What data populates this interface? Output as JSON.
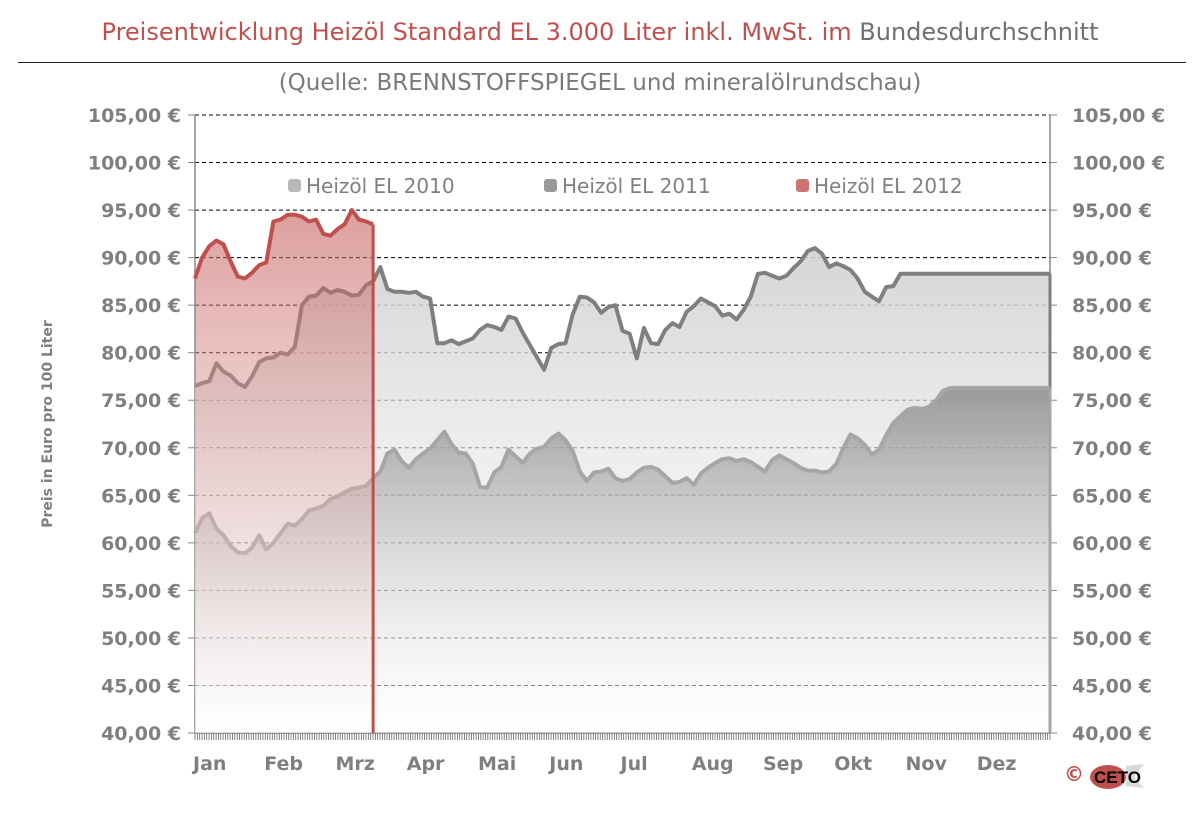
{
  "title": {
    "main": "Preisentwicklung Heizöl Standard EL 3.000 Liter inkl. MwSt. im",
    "rest": " Bundesdurchschnitt"
  },
  "subtitle": "(Quelle: BRENNSTOFFSPIEGEL  und mineralölrundschau)",
  "copyright": "©",
  "logo_text": "CETO",
  "colors": {
    "series_2010": "#a6a6a6",
    "series_2011": "#7f7f7f",
    "series_2012": "#c0504d",
    "grid": "#000000",
    "axis_text": "#7f7f7f"
  },
  "chart_data": {
    "type": "area",
    "ylabel": "Preis in Euro pro 100 Liter",
    "ylim": [
      40,
      105
    ],
    "yticks": [
      40,
      45,
      50,
      55,
      60,
      65,
      70,
      75,
      80,
      85,
      90,
      95,
      100,
      105
    ],
    "ytick_labels": [
      "40,00 €",
      "45,00 €",
      "50,00 €",
      "55,00 €",
      "60,00 €",
      "65,00 €",
      "70,00 €",
      "75,00 €",
      "80,00 €",
      "85,00 €",
      "90,00 €",
      "95,00 €",
      "100,00 €",
      "105,00 €"
    ],
    "x_months": [
      "Jan",
      "Feb",
      "Mrz",
      "Apr",
      "Mai",
      "Jun",
      "Jul",
      "Aug",
      "Sep",
      "Okt",
      "Nov",
      "Dez"
    ],
    "xlim": [
      0,
      12
    ],
    "grid": "horizontal dashed",
    "legend_position": "top",
    "series": [
      {
        "name": "Heizöl EL 2010",
        "x": [
          0.0,
          0.1,
          0.2,
          0.3,
          0.4,
          0.5,
          0.6,
          0.7,
          0.8,
          0.9,
          1.0,
          1.1,
          1.2,
          1.3,
          1.4,
          1.5,
          1.6,
          1.7,
          1.8,
          1.9,
          2.0,
          2.1,
          2.2,
          2.3,
          2.4,
          2.5,
          2.6,
          2.7,
          2.8,
          2.9,
          3.0,
          3.1,
          3.2,
          3.3,
          3.4,
          3.5,
          3.6,
          3.7,
          3.8,
          3.9,
          4.0,
          4.1,
          4.2,
          4.3,
          4.4,
          4.5,
          4.6,
          4.7,
          4.8,
          4.9,
          5.0,
          5.1,
          5.2,
          5.3,
          5.4,
          5.5,
          5.6,
          5.7,
          5.8,
          5.9,
          6.0,
          6.1,
          6.2,
          6.3,
          6.4,
          6.5,
          6.6,
          6.7,
          6.8,
          6.9,
          7.0,
          7.1,
          7.2,
          7.3,
          7.4,
          7.5,
          7.6,
          7.7,
          7.8,
          7.9,
          8.0,
          8.1,
          8.2,
          8.3,
          8.4,
          8.5,
          8.6,
          8.7,
          8.8,
          8.9,
          9.0,
          9.1,
          9.2,
          9.3,
          9.4,
          9.5,
          9.6,
          9.7,
          9.8,
          9.9,
          10.0,
          10.1,
          10.2,
          10.3,
          10.4,
          10.5,
          10.6,
          10.7,
          10.8,
          10.9,
          11.0,
          11.1,
          11.2,
          11.3,
          11.4,
          11.5,
          11.6,
          11.7,
          11.8,
          11.9,
          12.0
        ],
        "values": [
          61.0,
          62.6,
          63.1,
          61.5,
          60.8,
          59.7,
          59.0,
          58.9,
          59.5,
          60.8,
          59.3,
          60.0,
          61.0,
          62.0,
          61.8,
          62.5,
          63.4,
          63.6,
          63.9,
          64.6,
          64.9,
          65.3,
          65.7,
          65.8,
          66.0,
          66.8,
          67.5,
          69.4,
          69.8,
          68.6,
          67.9,
          68.8,
          69.4,
          69.9,
          70.8,
          71.7,
          70.4,
          69.5,
          69.4,
          68.3,
          65.9,
          65.8,
          67.4,
          68.0,
          69.8,
          69.1,
          68.4,
          69.4,
          69.9,
          70.1,
          71.0,
          71.5,
          70.8,
          69.7,
          67.5,
          66.5,
          67.4,
          67.5,
          67.8,
          66.8,
          66.5,
          66.7,
          67.4,
          67.9,
          68.0,
          67.7,
          67.0,
          66.3,
          66.4,
          66.8,
          66.1,
          67.3,
          67.9,
          68.4,
          68.8,
          68.9,
          68.6,
          68.8,
          68.5,
          68.0,
          67.5,
          68.7,
          69.2,
          68.8,
          68.4,
          67.9,
          67.6,
          67.6,
          67.4,
          67.5,
          68.3,
          70.0,
          71.4,
          71.0,
          70.3,
          69.3,
          69.8,
          71.3,
          72.6,
          73.3,
          74.0,
          74.2,
          74.1,
          74.3,
          75.0,
          76.0,
          76.3,
          76.3,
          76.3,
          76.3,
          76.3,
          76.3,
          76.3,
          76.3,
          76.3,
          76.3,
          76.3,
          76.3,
          76.3,
          76.3,
          76.3
        ]
      },
      {
        "name": "Heizöl EL 2011",
        "x": [
          0.0,
          0.1,
          0.2,
          0.3,
          0.4,
          0.5,
          0.6,
          0.7,
          0.8,
          0.9,
          1.0,
          1.1,
          1.2,
          1.3,
          1.4,
          1.5,
          1.6,
          1.7,
          1.8,
          1.9,
          2.0,
          2.1,
          2.2,
          2.3,
          2.4,
          2.5,
          2.6,
          2.7,
          2.8,
          2.9,
          3.0,
          3.1,
          3.2,
          3.3,
          3.4,
          3.5,
          3.6,
          3.7,
          3.8,
          3.9,
          4.0,
          4.1,
          4.2,
          4.3,
          4.4,
          4.5,
          4.6,
          4.7,
          4.8,
          4.9,
          5.0,
          5.1,
          5.2,
          5.3,
          5.4,
          5.5,
          5.6,
          5.7,
          5.8,
          5.9,
          6.0,
          6.1,
          6.2,
          6.3,
          6.4,
          6.5,
          6.6,
          6.7,
          6.8,
          6.9,
          7.0,
          7.1,
          7.2,
          7.3,
          7.4,
          7.5,
          7.6,
          7.7,
          7.8,
          7.9,
          8.0,
          8.1,
          8.2,
          8.3,
          8.4,
          8.5,
          8.6,
          8.7,
          8.8,
          8.9,
          9.0,
          9.1,
          9.2,
          9.3,
          9.4,
          9.5,
          9.6,
          9.7,
          9.8,
          9.9,
          10.0,
          10.1,
          10.2,
          10.3,
          10.4,
          10.5,
          10.6,
          10.7,
          10.8,
          10.9,
          11.0,
          11.1,
          11.2,
          11.3,
          11.4,
          11.5,
          11.6,
          11.7,
          11.8,
          11.9,
          12.0
        ],
        "values": [
          76.5,
          76.8,
          77.0,
          78.9,
          78.0,
          77.6,
          76.8,
          76.4,
          77.5,
          79.0,
          79.4,
          79.5,
          80.0,
          79.8,
          80.6,
          85.0,
          85.9,
          86.0,
          86.8,
          86.3,
          86.6,
          86.4,
          86.0,
          86.1,
          87.1,
          87.5,
          89.0,
          86.7,
          86.4,
          86.4,
          86.3,
          86.4,
          85.9,
          85.7,
          81.0,
          81.0,
          81.3,
          80.9,
          81.2,
          81.5,
          82.4,
          82.9,
          82.7,
          82.4,
          83.8,
          83.6,
          82.1,
          80.8,
          79.5,
          78.2,
          80.5,
          80.9,
          81.0,
          84.0,
          85.9,
          85.8,
          85.3,
          84.2,
          84.8,
          85.0,
          82.3,
          82.0,
          79.4,
          82.6,
          81.0,
          80.9,
          82.4,
          83.1,
          82.7,
          84.3,
          84.9,
          85.7,
          85.3,
          84.9,
          83.9,
          84.1,
          83.5,
          84.5,
          85.9,
          88.3,
          88.4,
          88.1,
          87.8,
          88.1,
          88.9,
          89.6,
          90.7,
          91.0,
          90.4,
          89.0,
          89.4,
          89.1,
          88.7,
          87.8,
          86.4,
          85.9,
          85.4,
          86.9,
          87.0,
          88.3,
          88.3,
          88.3,
          88.3,
          88.3,
          88.3,
          88.3,
          88.3,
          88.3,
          88.3,
          88.3,
          88.3,
          88.3,
          88.3,
          88.3,
          88.3,
          88.3,
          88.3,
          88.3,
          88.3,
          88.3,
          88.3
        ]
      },
      {
        "name": "Heizöl EL 2012",
        "x": [
          0.0,
          0.1,
          0.2,
          0.3,
          0.4,
          0.5,
          0.6,
          0.7,
          0.8,
          0.9,
          1.0,
          1.1,
          1.2,
          1.3,
          1.4,
          1.5,
          1.6,
          1.7,
          1.8,
          1.9,
          2.0,
          2.1,
          2.2,
          2.3,
          2.4,
          2.5
        ],
        "values": [
          87.8,
          90.0,
          91.2,
          91.8,
          91.4,
          89.6,
          88.0,
          87.8,
          88.4,
          89.2,
          89.5,
          93.8,
          94.0,
          94.5,
          94.5,
          94.3,
          93.8,
          94.0,
          92.5,
          92.3,
          93.0,
          93.5,
          95.0,
          94.0,
          93.8,
          93.5
        ]
      }
    ]
  }
}
